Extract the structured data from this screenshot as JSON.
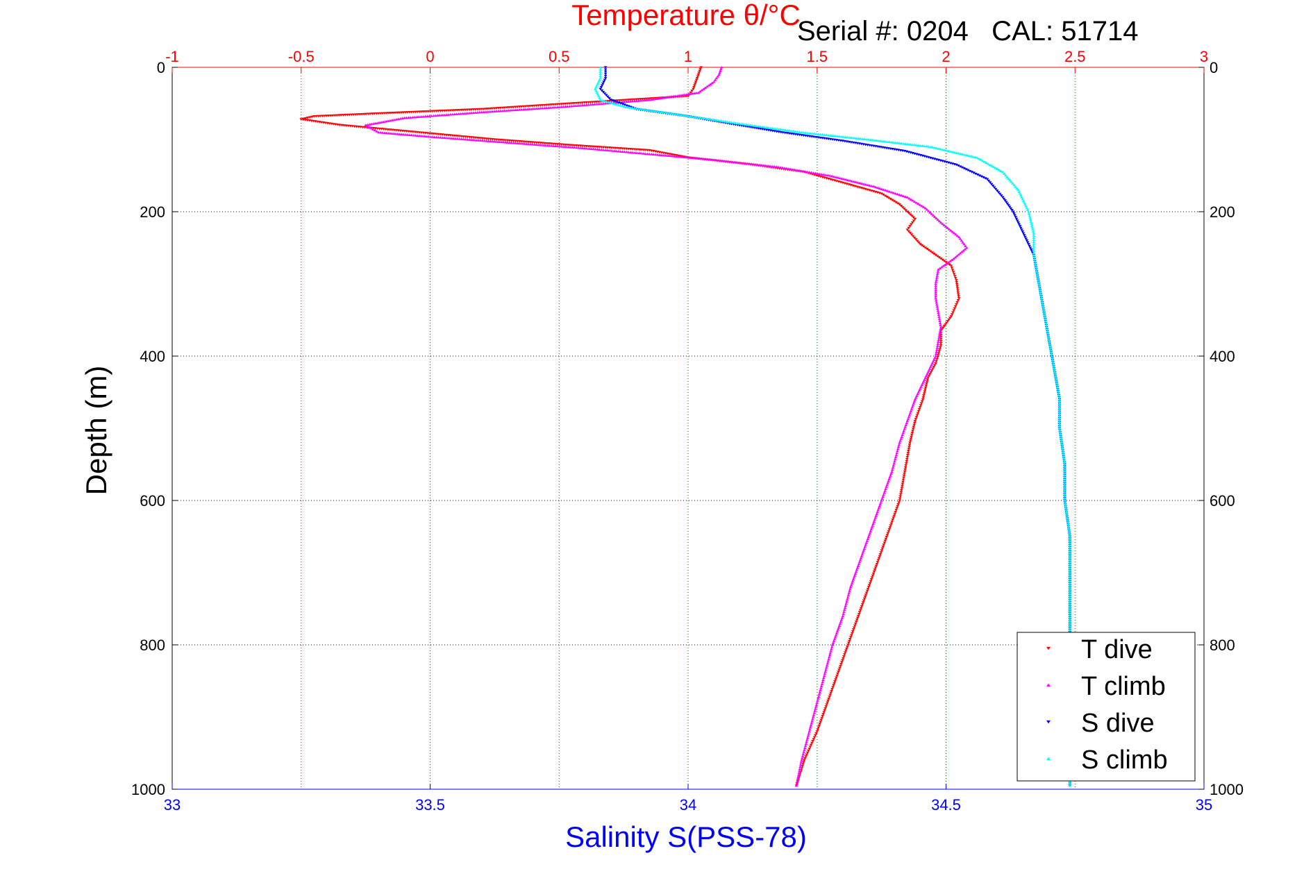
{
  "chart_data": {
    "type": "scatter",
    "title": "Temperature θ/°C",
    "annotation": "Serial #: 0204   CAL: 51714",
    "xlabel_top": "Temperature θ/°C",
    "xlabel_bottom": "Salinity S(PSS-78)",
    "ylabel": "Depth (m)",
    "temperature_axis": {
      "range": [
        -1,
        3
      ],
      "ticks": [
        "-1",
        "-0.5",
        "0",
        "0.5",
        "1",
        "1.5",
        "2",
        "2.5",
        "3"
      ],
      "color": "#ff0000"
    },
    "salinity_axis": {
      "range": [
        33,
        35
      ],
      "ticks": [
        "33",
        "33.5",
        "34",
        "34.5",
        "35"
      ],
      "color": "#0000ff"
    },
    "depth_axis": {
      "range": [
        0,
        1000
      ],
      "reversed": true,
      "ticks": [
        "0",
        "200",
        "400",
        "600",
        "800",
        "1000"
      ]
    },
    "grid": true,
    "legend_position": "bottom-right",
    "series": [
      {
        "name": "T dive",
        "axis": "temperature",
        "color": "#ff0000",
        "marker": "triangle-down",
        "points": [
          [
            1.05,
            0
          ],
          [
            1.04,
            10
          ],
          [
            1.03,
            20
          ],
          [
            1.02,
            30
          ],
          [
            1.0,
            40
          ],
          [
            0.55,
            50
          ],
          [
            0.2,
            58
          ],
          [
            -0.2,
            64
          ],
          [
            -0.45,
            68
          ],
          [
            -0.5,
            72
          ],
          [
            -0.35,
            80
          ],
          [
            -0.05,
            90
          ],
          [
            0.25,
            100
          ],
          [
            0.55,
            108
          ],
          [
            0.85,
            115
          ],
          [
            1.0,
            125
          ],
          [
            1.25,
            135
          ],
          [
            1.45,
            145
          ],
          [
            1.6,
            160
          ],
          [
            1.75,
            175
          ],
          [
            1.82,
            190
          ],
          [
            1.88,
            210
          ],
          [
            1.85,
            225
          ],
          [
            1.9,
            245
          ],
          [
            1.96,
            260
          ],
          [
            2.02,
            275
          ],
          [
            2.04,
            295
          ],
          [
            2.05,
            320
          ],
          [
            2.02,
            345
          ],
          [
            1.98,
            365
          ],
          [
            1.98,
            385
          ],
          [
            1.96,
            410
          ],
          [
            1.93,
            430
          ],
          [
            1.91,
            460
          ],
          [
            1.88,
            490
          ],
          [
            1.86,
            520
          ],
          [
            1.84,
            560
          ],
          [
            1.82,
            600
          ],
          [
            1.78,
            640
          ],
          [
            1.74,
            680
          ],
          [
            1.7,
            720
          ],
          [
            1.66,
            760
          ],
          [
            1.62,
            800
          ],
          [
            1.58,
            840
          ],
          [
            1.54,
            880
          ],
          [
            1.5,
            920
          ],
          [
            1.45,
            960
          ],
          [
            1.42,
            995
          ]
        ]
      },
      {
        "name": "T climb",
        "axis": "temperature",
        "color": "#ff00ff",
        "marker": "triangle-up",
        "points": [
          [
            1.13,
            0
          ],
          [
            1.12,
            10
          ],
          [
            1.1,
            20
          ],
          [
            1.04,
            35
          ],
          [
            0.85,
            45
          ],
          [
            0.5,
            55
          ],
          [
            0.2,
            62
          ],
          [
            -0.1,
            70
          ],
          [
            -0.25,
            80
          ],
          [
            -0.2,
            90
          ],
          [
            0.0,
            96
          ],
          [
            0.3,
            104
          ],
          [
            0.6,
            112
          ],
          [
            0.85,
            120
          ],
          [
            1.1,
            128
          ],
          [
            1.35,
            138
          ],
          [
            1.55,
            150
          ],
          [
            1.72,
            165
          ],
          [
            1.85,
            180
          ],
          [
            1.92,
            195
          ],
          [
            1.98,
            215
          ],
          [
            2.05,
            235
          ],
          [
            2.08,
            250
          ],
          [
            2.03,
            265
          ],
          [
            1.97,
            280
          ],
          [
            1.96,
            300
          ],
          [
            1.96,
            320
          ],
          [
            1.97,
            340
          ],
          [
            1.98,
            360
          ],
          [
            1.97,
            380
          ],
          [
            1.96,
            400
          ],
          [
            1.92,
            430
          ],
          [
            1.88,
            460
          ],
          [
            1.85,
            490
          ],
          [
            1.82,
            520
          ],
          [
            1.79,
            560
          ],
          [
            1.75,
            600
          ],
          [
            1.71,
            640
          ],
          [
            1.67,
            680
          ],
          [
            1.63,
            720
          ],
          [
            1.6,
            760
          ],
          [
            1.56,
            800
          ],
          [
            1.53,
            840
          ],
          [
            1.5,
            880
          ],
          [
            1.47,
            920
          ],
          [
            1.44,
            960
          ],
          [
            1.42,
            995
          ]
        ]
      },
      {
        "name": "S dive",
        "axis": "salinity",
        "color": "#0000ff",
        "marker": "triangle-down",
        "points": [
          [
            33.84,
            0
          ],
          [
            33.84,
            15
          ],
          [
            33.83,
            30
          ],
          [
            33.85,
            45
          ],
          [
            33.9,
            58
          ],
          [
            34.0,
            68
          ],
          [
            34.08,
            78
          ],
          [
            34.18,
            90
          ],
          [
            34.3,
            102
          ],
          [
            34.42,
            116
          ],
          [
            34.52,
            135
          ],
          [
            34.58,
            155
          ],
          [
            34.61,
            180
          ],
          [
            34.63,
            200
          ],
          [
            34.65,
            230
          ],
          [
            34.67,
            260
          ],
          [
            34.68,
            300
          ],
          [
            34.69,
            340
          ],
          [
            34.7,
            380
          ],
          [
            34.71,
            420
          ],
          [
            34.72,
            460
          ],
          [
            34.72,
            500
          ],
          [
            34.73,
            550
          ],
          [
            34.73,
            600
          ],
          [
            34.74,
            650
          ],
          [
            34.74,
            700
          ],
          [
            34.74,
            750
          ],
          [
            34.74,
            800
          ],
          [
            34.74,
            850
          ],
          [
            34.74,
            900
          ],
          [
            34.74,
            950
          ],
          [
            34.74,
            995
          ]
        ]
      },
      {
        "name": "S climb",
        "axis": "salinity",
        "color": "#00ffff",
        "marker": "triangle-up",
        "points": [
          [
            33.83,
            0
          ],
          [
            33.83,
            15
          ],
          [
            33.82,
            30
          ],
          [
            33.83,
            45
          ],
          [
            33.88,
            55
          ],
          [
            33.98,
            65
          ],
          [
            34.1,
            78
          ],
          [
            34.22,
            90
          ],
          [
            34.35,
            100
          ],
          [
            34.47,
            110
          ],
          [
            34.56,
            125
          ],
          [
            34.61,
            145
          ],
          [
            34.64,
            170
          ],
          [
            34.66,
            200
          ],
          [
            34.67,
            230
          ],
          [
            34.67,
            260
          ],
          [
            34.68,
            300
          ],
          [
            34.69,
            340
          ],
          [
            34.7,
            380
          ],
          [
            34.71,
            420
          ],
          [
            34.72,
            460
          ],
          [
            34.72,
            500
          ],
          [
            34.73,
            550
          ],
          [
            34.73,
            600
          ],
          [
            34.74,
            650
          ],
          [
            34.74,
            700
          ],
          [
            34.74,
            750
          ],
          [
            34.74,
            800
          ],
          [
            34.74,
            850
          ],
          [
            34.74,
            900
          ],
          [
            34.74,
            950
          ],
          [
            34.74,
            995
          ]
        ]
      }
    ]
  }
}
